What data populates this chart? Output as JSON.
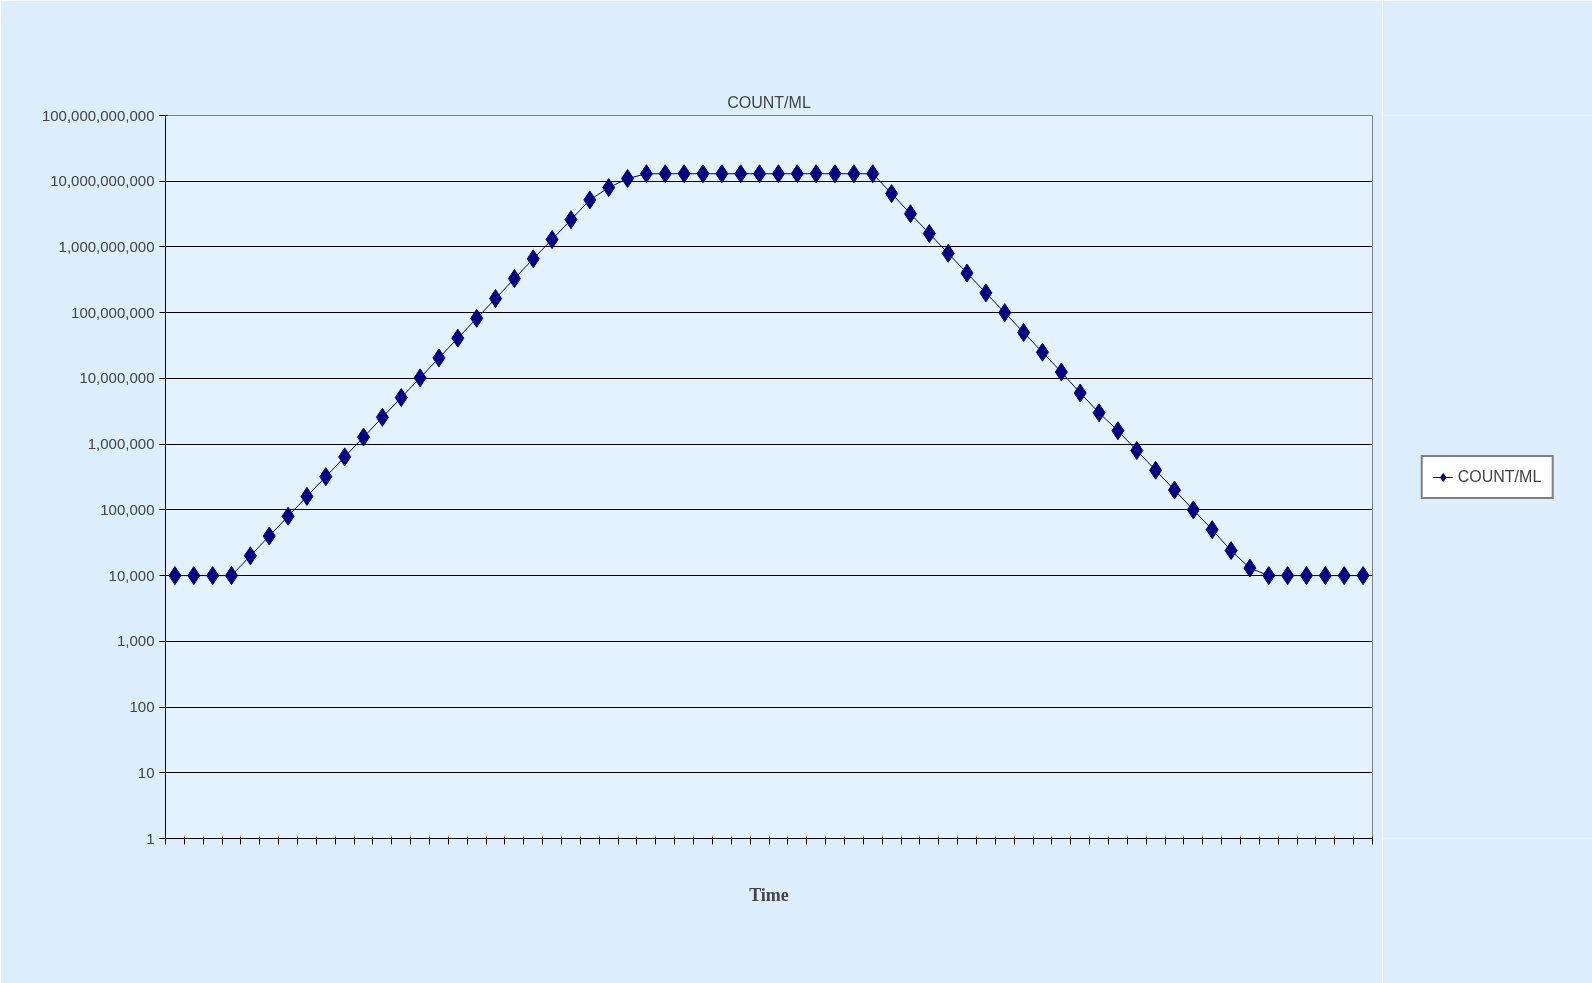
{
  "chart_data": {
    "type": "line",
    "title": "COUNT/ML",
    "xlabel": "Time",
    "categories": [
      null,
      null,
      null,
      null,
      null,
      null,
      null,
      null,
      null,
      null,
      null,
      null,
      null,
      null,
      null,
      null,
      null,
      null,
      null,
      null,
      null,
      null,
      null,
      null,
      null,
      null,
      null,
      null,
      null,
      null,
      null,
      null,
      null,
      null,
      null,
      null,
      null,
      null,
      null,
      null,
      null,
      null,
      null,
      null,
      null,
      null,
      null,
      null,
      null,
      null,
      null,
      null,
      null,
      null,
      null,
      null,
      null,
      null,
      null,
      null,
      null,
      null,
      null,
      null
    ],
    "series": [
      {
        "name": "COUNT/ML",
        "color": "#000080",
        "values": [
          10000,
          10000,
          10000,
          10000,
          20000,
          40000,
          80000,
          160000,
          320000,
          640000,
          1280000,
          2560000,
          5120000,
          10200000,
          20500000,
          41000000,
          82000000,
          164000000,
          330000000,
          660000000,
          1300000000,
          2600000000,
          5200000000,
          8000000000,
          11000000000,
          13000000000,
          13000000000,
          13000000000,
          13000000000,
          13000000000,
          13000000000,
          13000000000,
          13000000000,
          13000000000,
          13000000000,
          13000000000,
          13000000000,
          13000000000,
          6500000000,
          3200000000,
          1600000000,
          800000000,
          400000000,
          200000000,
          100000000,
          50000000,
          25000000,
          12500000,
          6000000,
          3000000,
          1600000,
          800000,
          400000,
          200000,
          100000,
          50000,
          24000,
          13000,
          10000,
          10000,
          10000,
          10000,
          10000,
          10000
        ]
      }
    ],
    "ylim": [
      1,
      100000000000
    ],
    "yticks": [
      1,
      10,
      100,
      {
        "value": 1000,
        "label": "1,000"
      },
      {
        "value": 10000,
        "label": "10,000"
      },
      {
        "value": 100000,
        "label": "100,000"
      },
      {
        "value": 1000000,
        "label": "1,000,000"
      },
      {
        "value": 10000000,
        "label": "10,000,000"
      },
      {
        "value": 100000000,
        "label": "100,000,000"
      },
      {
        "value": 1000000000,
        "label": "1,000,000,000"
      },
      {
        "value": 10000000000,
        "label": "10,000,000,000"
      },
      {
        "value": 100000000000,
        "label": "100,000,000,000"
      }
    ],
    "log": "y",
    "grid": "y",
    "legend": "right",
    "marker": "diamond",
    "line_style": "solid",
    "tick_labels": "y"
  }
}
